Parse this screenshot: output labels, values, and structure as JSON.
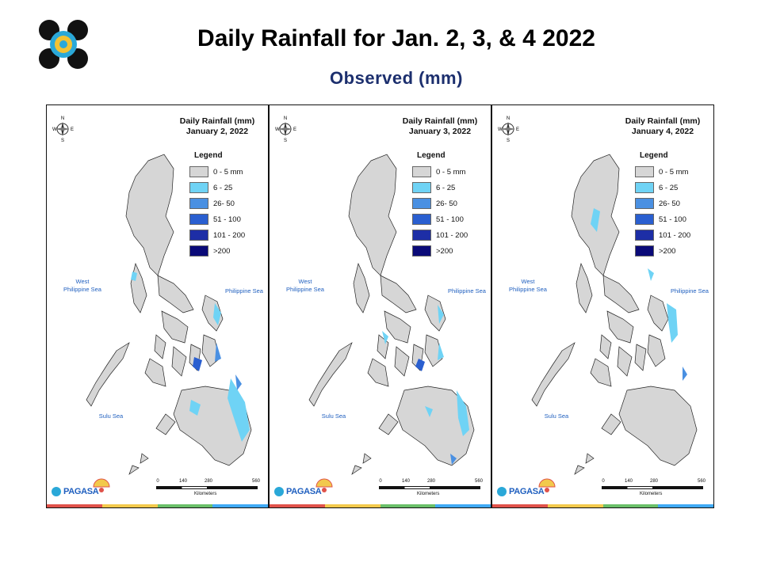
{
  "title": "Daily Rainfall for Jan. 2, 3, & 4 2022",
  "subtitle": "Observed (mm)",
  "colors": {
    "subtitle": "#1c2f6e",
    "land": "#d6d6d6",
    "sea_label": "#1f5fbf",
    "rain_6_25": "#6fd3f5",
    "rain_26_50": "#4a90e2",
    "rain_51_100": "#2a5fd0",
    "rain_101_200": "#1d2ea6",
    "rain_200_plus": "#0a0a78"
  },
  "legend": {
    "title": "Legend",
    "items": [
      {
        "label": "0 - 5 mm",
        "color": "#d6d6d6"
      },
      {
        "label": "6 - 25",
        "color": "#6fd3f5"
      },
      {
        "label": "26- 50",
        "color": "#4a90e2"
      },
      {
        "label": "51 - 100",
        "color": "#2a5fd0"
      },
      {
        "label": "101 - 200",
        "color": "#1d2ea6"
      },
      {
        "label": ">200",
        "color": "#0a0a78"
      }
    ]
  },
  "sea_labels": {
    "west": "West\nPhilippine Sea",
    "east": "Philippine Sea",
    "sulu": "Sulu Sea"
  },
  "scale": {
    "ticks": [
      "0",
      "140",
      "280",
      "560"
    ],
    "unit": "Kilometers"
  },
  "brand": {
    "name": "PAGASA"
  },
  "compass_letters": {
    "n": "N",
    "e": "E",
    "s": "S",
    "w": "W"
  },
  "panels": [
    {
      "title_line1": "Daily Rainfall (mm)",
      "title_line2": "January 2, 2022"
    },
    {
      "title_line1": "Daily Rainfall (mm)",
      "title_line2": "January 3, 2022"
    },
    {
      "title_line1": "Daily Rainfall (mm)",
      "title_line2": "January 4, 2022"
    }
  ],
  "strip_colors": [
    "#e0524a",
    "#f2c94c",
    "#6abf69",
    "#3fa9f5"
  ]
}
